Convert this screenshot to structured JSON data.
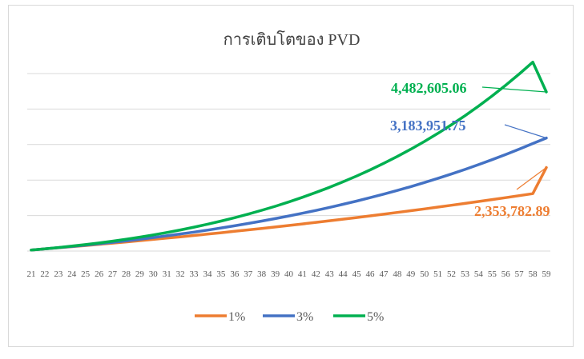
{
  "chart_data": {
    "type": "line",
    "title": "การเติบโตของ PVD",
    "xlabel": "",
    "ylabel": "",
    "categories": [
      "21",
      "22",
      "23",
      "24",
      "25",
      "26",
      "27",
      "28",
      "29",
      "30",
      "31",
      "32",
      "33",
      "34",
      "35",
      "36",
      "37",
      "38",
      "39",
      "40",
      "41",
      "42",
      "43",
      "44",
      "45",
      "46",
      "47",
      "48",
      "49",
      "50",
      "51",
      "52",
      "53",
      "54",
      "55",
      "56",
      "57",
      "58",
      "59"
    ],
    "ylim": [
      0,
      5000000
    ],
    "y_ticks_shown": false,
    "grid": true,
    "legend_position": "bottom",
    "series": [
      {
        "name": "1%",
        "color": "#ed7d31",
        "values": [
          30000,
          60600,
          91806,
          123624,
          156060,
          189121,
          222812,
          257140,
          292112,
          327733,
          364010,
          400950,
          438560,
          476845,
          515813,
          555472,
          595826,
          636884,
          678653,
          721140,
          764351,
          808295,
          852978,
          898407,
          944591,
          991537,
          1039252,
          1087745,
          1137022,
          1187092,
          1237963,
          1289643,
          1342139,
          1395461,
          1449615,
          1504612,
          1560458,
          1617162,
          2353782.89
        ],
        "end_label": "2,353,782.89"
      },
      {
        "name": "3%",
        "color": "#4472c4",
        "values": [
          30000,
          61800,
          95254,
          130382,
          167253,
          205948,
          246541,
          289113,
          333745,
          380528,
          429550,
          480905,
          534690,
          590990,
          649915,
          711559,
          776040,
          843475,
          913970,
          987640,
          1064625,
          1145050,
          1229050,
          1316760,
          1408340,
          1503930,
          1603700,
          1707800,
          1816400,
          1929700,
          2047900,
          2171100,
          2299600,
          2433600,
          2573300,
          2719000,
          2870800,
          3029100,
          3183951.75
        ],
        "end_label": "3,183,951.75"
      },
      {
        "name": "5%",
        "color": "#00b050",
        "values": [
          30000,
          63000,
          99150,
          138608,
          181538,
          228115,
          278521,
          332947,
          391594,
          454674,
          522408,
          595028,
          672779,
          755918,
          844714,
          939450,
          1040422,
          1147943,
          1262341,
          1383958,
          1513156,
          1650314,
          1795830,
          1950121,
          2113627,
          2286808,
          2470148,
          2664155,
          2869362,
          3086330,
          3315647,
          3557929,
          3813826,
          4084017,
          4369218,
          4670178,
          4987687,
          5322571,
          4482605.06
        ],
        "end_label": "4,482,605.06"
      }
    ]
  }
}
